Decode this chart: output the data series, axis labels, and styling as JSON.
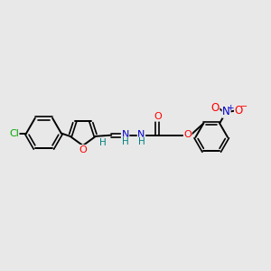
{
  "bg_color": "#e8e8e8",
  "bond_color": "#000000",
  "atom_colors": {
    "C": "#000000",
    "O": "#ff0000",
    "N": "#0000cc",
    "Cl": "#00aa00",
    "H": "#008080"
  },
  "figsize": [
    3.0,
    3.0
  ],
  "dpi": 100,
  "xlim": [
    0,
    12
  ],
  "ylim": [
    0,
    12
  ]
}
